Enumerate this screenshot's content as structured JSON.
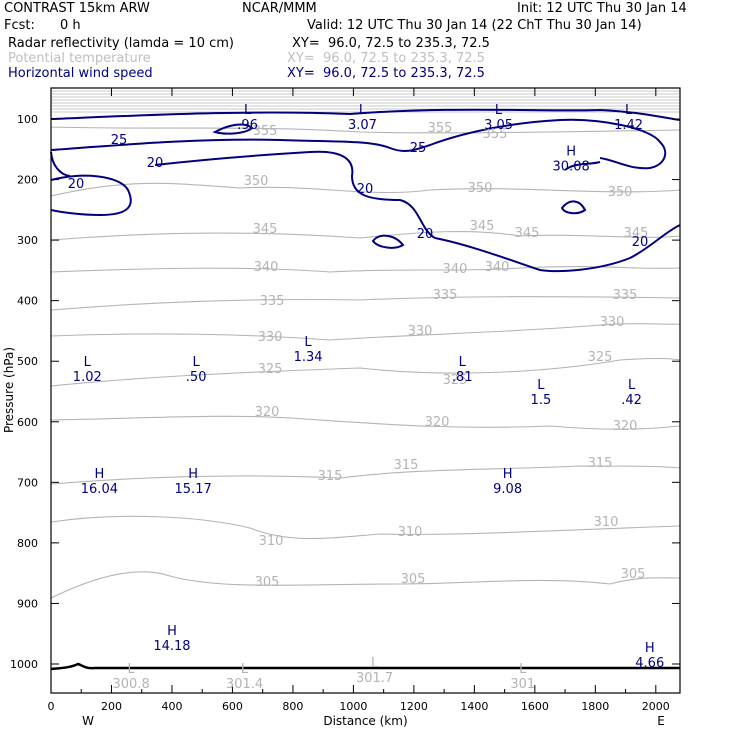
{
  "header": {
    "model": "CONTRAST 15km ARW",
    "org": "NCAR/MMM",
    "init": "Init: 12 UTC Thu 30 Jan 14",
    "fcst_label": "Fcst:",
    "fcst_value": "0 h",
    "valid": "Valid: 12 UTC Thu 30 Jan 14 (22 ChT Thu 30 Jan 14)",
    "fields": [
      {
        "name": "Radar reflectivity (lamda = 10 cm)",
        "xy": "XY=  96.0, 72.5 to 235.3, 72.5",
        "color": "#000000"
      },
      {
        "name": "Potential temperature",
        "xy": "XY=  96.0, 72.5 to 235.3, 72.5",
        "color": "#c0c0c0"
      },
      {
        "name": "Horizontal wind speed",
        "xy": "XY=  96.0, 72.5 to 235.3, 72.5",
        "color": "#000080"
      }
    ]
  },
  "colors": {
    "wind": "#000080",
    "theta": "#b4b4b4",
    "axis": "#000000",
    "ground": "#000000"
  },
  "chart_data": {
    "type": "contour cross-section",
    "xlabel": "Distance (km)",
    "ylabel": "Pressure (hPa)",
    "xlim": [
      0,
      2080
    ],
    "ylim": [
      1045,
      75
    ],
    "x_ticks": [
      "0",
      "200",
      "400",
      "600",
      "800",
      "1000",
      "1200",
      "1400",
      "1600",
      "1800",
      "2000"
    ],
    "y_ticks": [
      "100",
      "200",
      "300",
      "400",
      "500",
      "600",
      "700",
      "800",
      "900",
      "1000"
    ],
    "endpoints": {
      "left": "W",
      "right": "E"
    },
    "theta_contours": [
      {
        "level": 355,
        "label": "355"
      },
      {
        "level": 350,
        "label": "350"
      },
      {
        "level": 345,
        "label": "345"
      },
      {
        "level": 340,
        "label": "340"
      },
      {
        "level": 335,
        "label": "335"
      },
      {
        "level": 330,
        "label": "330"
      },
      {
        "level": 325,
        "label": "325"
      },
      {
        "level": 320,
        "label": "320"
      },
      {
        "level": 315,
        "label": "315"
      },
      {
        "level": 310,
        "label": "310"
      },
      {
        "level": 305,
        "label": "305"
      }
    ],
    "wind_contour_labels": [
      "25",
      "20"
    ],
    "wind_extrema": [
      {
        "type": "L",
        "value": ".96",
        "x_km": 650,
        "p_hpa": 92
      },
      {
        "type": "L",
        "value": "3.07",
        "x_km": 1030,
        "p_hpa": 92
      },
      {
        "type": "L",
        "value": "3.05",
        "x_km": 1480,
        "p_hpa": 92
      },
      {
        "type": "L",
        "value": "1.42",
        "x_km": 1910,
        "p_hpa": 92
      },
      {
        "type": "H",
        "value": "30.08",
        "x_km": 1720,
        "p_hpa": 160
      },
      {
        "type": "L",
        "value": "1.34",
        "x_km": 850,
        "p_hpa": 475
      },
      {
        "type": "L",
        "value": "1.02",
        "x_km": 120,
        "p_hpa": 508
      },
      {
        "type": "L",
        "value": ".50",
        "x_km": 480,
        "p_hpa": 508
      },
      {
        "type": "L",
        "value": ".81",
        "x_km": 1360,
        "p_hpa": 508
      },
      {
        "type": "L",
        "value": "1.5",
        "x_km": 1620,
        "p_hpa": 546
      },
      {
        "type": "L",
        "value": ".42",
        "x_km": 1920,
        "p_hpa": 546
      },
      {
        "type": "H",
        "value": "16.04",
        "x_km": 160,
        "p_hpa": 693
      },
      {
        "type": "H",
        "value": "15.17",
        "x_km": 470,
        "p_hpa": 693
      },
      {
        "type": "H",
        "value": "9.08",
        "x_km": 1510,
        "p_hpa": 693
      },
      {
        "type": "H",
        "value": "14.18",
        "x_km": 400,
        "p_hpa": 952
      },
      {
        "type": "H",
        "value": "4.66",
        "x_km": 1980,
        "p_hpa": 980
      }
    ],
    "theta_extrema": [
      {
        "type": "L",
        "value": "300.8",
        "x_km": 265,
        "p_hpa": 1015
      },
      {
        "type": "L",
        "value": "301.4",
        "x_km": 640,
        "p_hpa": 1015
      },
      {
        "type": "L",
        "value": "301.7",
        "x_km": 1070,
        "p_hpa": 1005
      },
      {
        "type": "L",
        "value": "301",
        "x_km": 1560,
        "p_hpa": 1015
      }
    ]
  }
}
